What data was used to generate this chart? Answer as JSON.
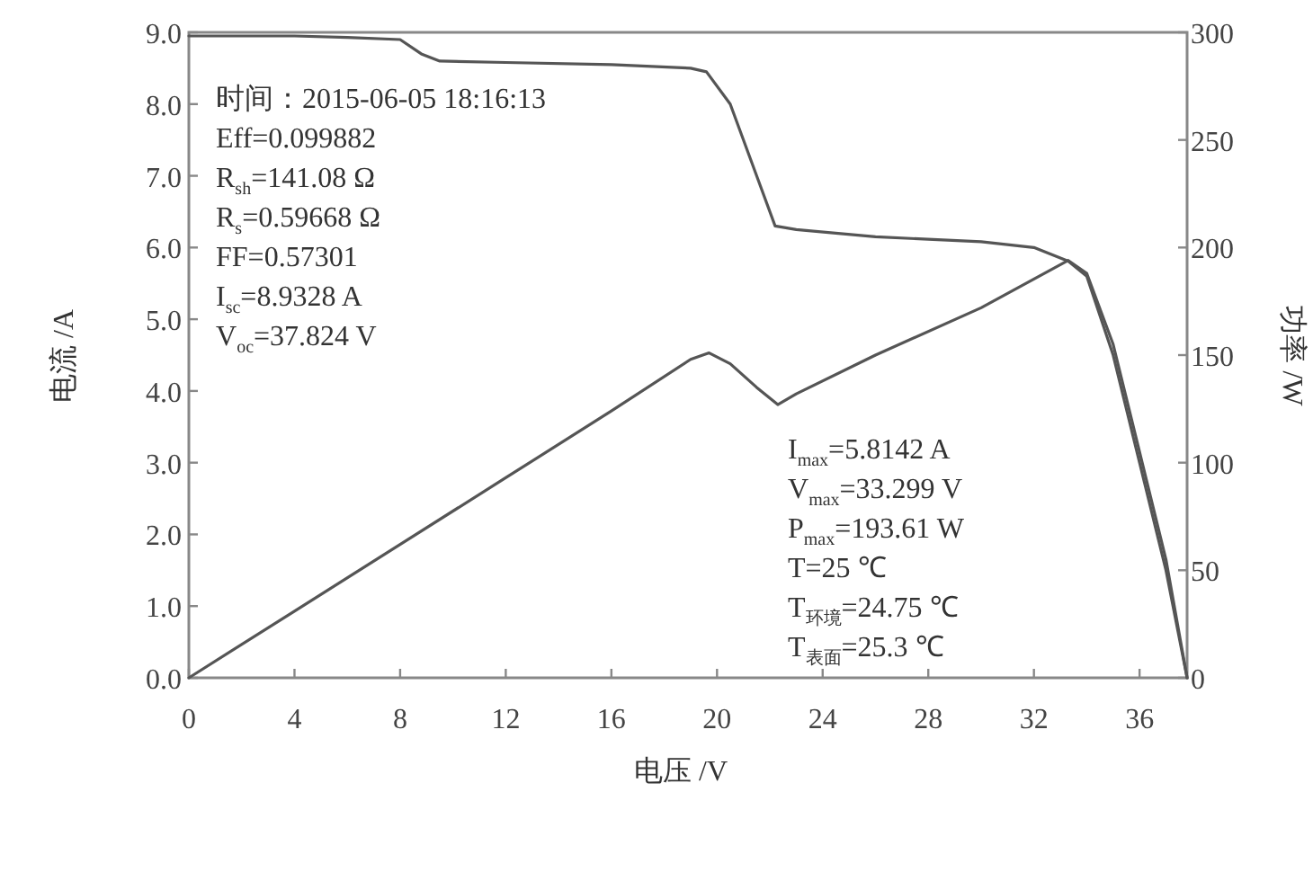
{
  "chart_data": {
    "type": "line",
    "xlabel": "电压 /V",
    "ylabel": "电流 /A",
    "y2label": "功率 /W",
    "xlim": [
      0,
      37.8
    ],
    "xticks": [
      0,
      4,
      8,
      12,
      16,
      20,
      24,
      28,
      32,
      36
    ],
    "ylim": [
      0,
      9
    ],
    "yticks": [
      {
        "value": 0,
        "label": "0.0"
      },
      {
        "value": 1,
        "label": "1.0"
      },
      {
        "value": 2,
        "label": "2.0"
      },
      {
        "value": 3,
        "label": "3.0"
      },
      {
        "value": 4,
        "label": "4.0"
      },
      {
        "value": 5,
        "label": "5.0"
      },
      {
        "value": 6,
        "label": "6.0"
      },
      {
        "value": 7,
        "label": "7.0"
      },
      {
        "value": 8,
        "label": "8.0"
      },
      {
        "value": 9,
        "label": "9.0"
      }
    ],
    "y2lim": [
      0,
      300
    ],
    "y2ticks": [
      0,
      50,
      100,
      150,
      200,
      250,
      300
    ],
    "line_style": "solid",
    "series": [
      {
        "color": "#555555",
        "x": [
          0,
          2,
          4,
          6,
          8,
          8.8,
          9.5,
          12,
          16,
          19,
          19.6,
          20.5,
          21.5,
          22.2,
          23,
          26,
          30,
          32,
          33.3,
          34,
          35,
          36,
          37,
          37.8
        ],
        "values": [
          8.95,
          8.95,
          8.95,
          8.93,
          8.9,
          8.7,
          8.6,
          8.58,
          8.55,
          8.5,
          8.45,
          8.0,
          7.0,
          6.3,
          6.25,
          6.15,
          6.08,
          6.0,
          5.81,
          5.6,
          4.5,
          3.0,
          1.5,
          0
        ]
      },
      {
        "color": "#555555",
        "axis": "y2",
        "x": [
          0,
          4,
          8,
          12,
          16,
          19,
          19.7,
          20.5,
          21.5,
          22.3,
          23,
          26,
          30,
          33.3,
          34,
          35,
          36,
          37,
          37.8
        ],
        "values": [
          0,
          31,
          62,
          93,
          124,
          148,
          151,
          146,
          135,
          127,
          132,
          150,
          172,
          194,
          188,
          155,
          105,
          55,
          0
        ]
      }
    ],
    "annotations": [
      "时间：2015-06-05 18:16:13",
      "Eff=0.099882",
      "R$_{sh}$=141.08 Ω",
      "R$_{s}$=0.59668 Ω",
      "FF=0.57301",
      "I$_{sc}$=8.9328 A",
      "V$_{oc}$=37.824 V",
      "I$_{max}$=5.8142 A",
      "V$_{max}$=33.299 V",
      "P$_{max}$=193.61 W",
      "T=25 ℃",
      "T$_{环境}$=24.75 ℃",
      "T$_{表面}$=25.3 ℃"
    ]
  }
}
